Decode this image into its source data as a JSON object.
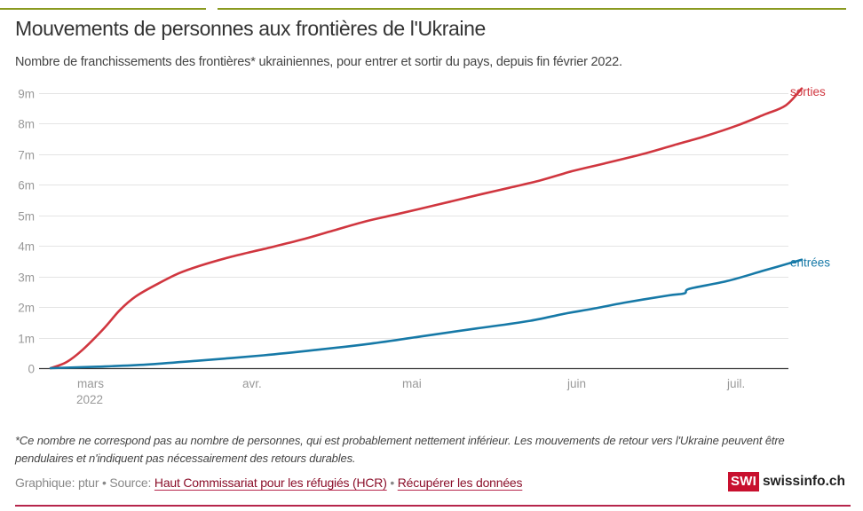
{
  "header": {
    "title": "Mouvements de personnes aux frontières de l'Ukraine",
    "subtitle": "Nombre de franchissements des frontières* ukrainiennes, pour entrer et sortir du pays, depuis fin février 2022."
  },
  "colors": {
    "accent_top": "#8a9a1f",
    "accent_bottom": "#b6254b",
    "sorties": "#d0363f",
    "entrees": "#1679a7",
    "grid": "#e4e4e4",
    "axis": "#333333",
    "tick_text": "#999999",
    "logo_red": "#c8102e"
  },
  "chart_data": {
    "type": "line",
    "title": "Mouvements de personnes aux frontières de l'Ukraine",
    "xlabel": "",
    "ylabel": "",
    "ylim": [
      0,
      9000000
    ],
    "xlim": [
      "2022-02-24",
      "2022-07-15"
    ],
    "grid": true,
    "legend": "inline-right",
    "y_ticks": [
      {
        "value": 0,
        "label": "0"
      },
      {
        "value": 1000000,
        "label": "1m"
      },
      {
        "value": 2000000,
        "label": "2m"
      },
      {
        "value": 3000000,
        "label": "3m"
      },
      {
        "value": 4000000,
        "label": "4m"
      },
      {
        "value": 5000000,
        "label": "5m"
      },
      {
        "value": 6000000,
        "label": "6m"
      },
      {
        "value": 7000000,
        "label": "7m"
      },
      {
        "value": 8000000,
        "label": "8m"
      },
      {
        "value": 9000000,
        "label": "9m"
      }
    ],
    "x_ticks": [
      {
        "date": "2022-03-01",
        "label": "mars",
        "sublabel": "2022"
      },
      {
        "date": "2022-04-01",
        "label": "avr.",
        "sublabel": ""
      },
      {
        "date": "2022-05-01",
        "label": "mai",
        "sublabel": ""
      },
      {
        "date": "2022-06-01",
        "label": "juin",
        "sublabel": ""
      },
      {
        "date": "2022-07-01",
        "label": "juil.",
        "sublabel": ""
      }
    ],
    "series": [
      {
        "name": "sorties",
        "label": "sorties",
        "color": "#d0363f",
        "points": [
          [
            "2022-02-24",
            0
          ],
          [
            "2022-02-27",
            200000
          ],
          [
            "2022-03-02",
            600000
          ],
          [
            "2022-03-06",
            1300000
          ],
          [
            "2022-03-09",
            1900000
          ],
          [
            "2022-03-12",
            2350000
          ],
          [
            "2022-03-16",
            2750000
          ],
          [
            "2022-03-20",
            3100000
          ],
          [
            "2022-03-24",
            3350000
          ],
          [
            "2022-03-30",
            3650000
          ],
          [
            "2022-04-05",
            3900000
          ],
          [
            "2022-04-12",
            4200000
          ],
          [
            "2022-04-18",
            4500000
          ],
          [
            "2022-04-24",
            4800000
          ],
          [
            "2022-04-29",
            5000000
          ],
          [
            "2022-05-04",
            5200000
          ],
          [
            "2022-05-10",
            5450000
          ],
          [
            "2022-05-16",
            5700000
          ],
          [
            "2022-05-21",
            5900000
          ],
          [
            "2022-05-27",
            6150000
          ],
          [
            "2022-06-02",
            6450000
          ],
          [
            "2022-06-08",
            6700000
          ],
          [
            "2022-06-15",
            7000000
          ],
          [
            "2022-06-21",
            7300000
          ],
          [
            "2022-06-27",
            7600000
          ],
          [
            "2022-07-03",
            7950000
          ],
          [
            "2022-07-08",
            8300000
          ],
          [
            "2022-07-12",
            8600000
          ],
          [
            "2022-07-15",
            9150000
          ]
        ]
      },
      {
        "name": "entrées",
        "label": "entrées",
        "color": "#1679a7",
        "points": [
          [
            "2022-02-24",
            0
          ],
          [
            "2022-03-05",
            50000
          ],
          [
            "2022-03-14",
            120000
          ],
          [
            "2022-03-24",
            250000
          ],
          [
            "2022-04-05",
            420000
          ],
          [
            "2022-04-15",
            600000
          ],
          [
            "2022-04-25",
            800000
          ],
          [
            "2022-05-05",
            1050000
          ],
          [
            "2022-05-15",
            1300000
          ],
          [
            "2022-05-25",
            1550000
          ],
          [
            "2022-06-01",
            1800000
          ],
          [
            "2022-06-05",
            1920000
          ],
          [
            "2022-06-12",
            2150000
          ],
          [
            "2022-06-20",
            2380000
          ],
          [
            "2022-06-23",
            2450000
          ],
          [
            "2022-06-24",
            2600000
          ],
          [
            "2022-07-01",
            2850000
          ],
          [
            "2022-07-08",
            3200000
          ],
          [
            "2022-07-15",
            3550000
          ]
        ]
      }
    ]
  },
  "footer": {
    "note": "*Ce nombre ne correspond pas au nombre de personnes, qui est probablement nettement inférieur. Les mouvements de retour vers l'Ukraine peuvent être pendulaires et n'indiquent pas nécessairement des retours durables.",
    "credit_prefix": "Graphique: ptur • Source: ",
    "source_link": "Haut Commissariat pour les réfugiés (HCR)",
    "separator": " • ",
    "data_link": "Récupérer les données",
    "logo_mark": "SWI",
    "logo_site": "swissinfo.ch"
  }
}
